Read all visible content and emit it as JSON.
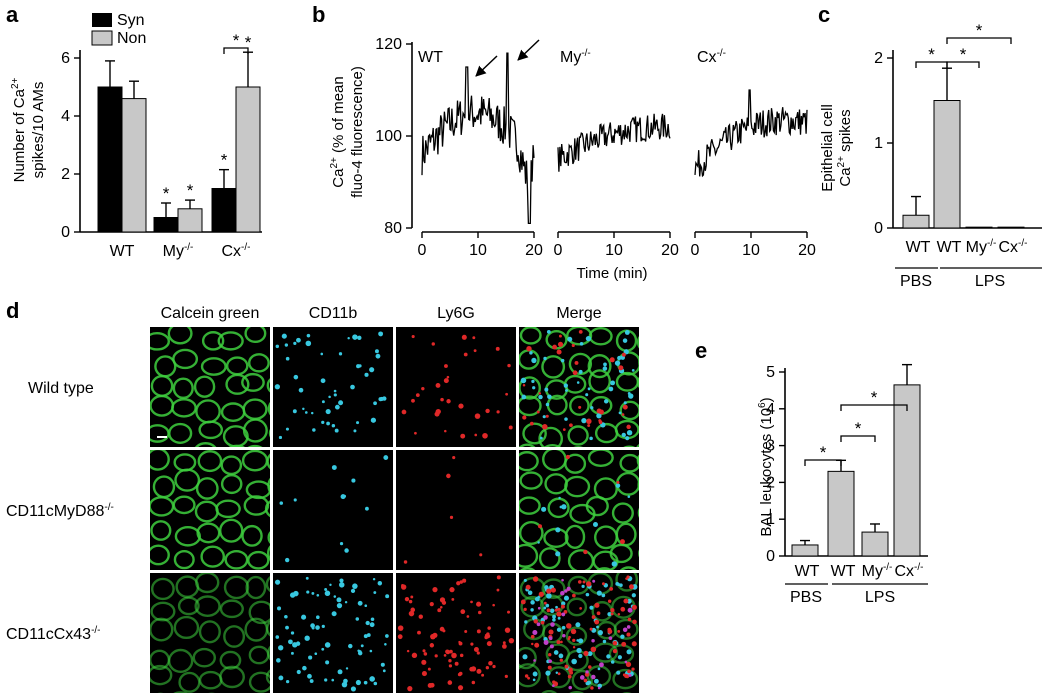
{
  "colors": {
    "syn": "#000000",
    "non": "#c8c8c8",
    "calcein": "#3ecf3e",
    "cd11b": "#38c8e0",
    "ly6g": "#e02828",
    "merge_extra": "#c040c8"
  },
  "panel_labels": {
    "a": "a",
    "b": "b",
    "c": "c",
    "d": "d",
    "e": "e"
  },
  "chart_data": [
    {
      "panel": "a",
      "type": "bar",
      "categories": [
        "WT",
        "My",
        "Cx"
      ],
      "category_superscripts": [
        "",
        "-/-",
        "-/-"
      ],
      "series": [
        {
          "name": "Syn",
          "values": [
            5.0,
            0.5,
            1.5
          ],
          "errors": [
            0.9,
            0.5,
            0.65
          ]
        },
        {
          "name": "Non",
          "values": [
            4.6,
            0.8,
            5.0
          ],
          "errors": [
            0.6,
            0.3,
            1.2
          ]
        }
      ],
      "ylabel_line1": "Number of  Ca",
      "ylabel_sup": "2+",
      "ylabel_line2": "spikes/10 AMs",
      "ylim": [
        0,
        6
      ],
      "yticks": [
        "0",
        "2",
        "4",
        "6"
      ],
      "legend": "top-left",
      "annotations": [
        "*",
        "*",
        "*",
        "*"
      ],
      "bracket_label": "*"
    },
    {
      "panel": "b",
      "type": "line",
      "ylabel_line1": "Ca",
      "ylabel_sup": "2+",
      "ylabel_rest": " (% of mean",
      "ylabel_line2": "fluo-4 fluorescence)",
      "xlabel": "Time (min)",
      "ylim": [
        80,
        120
      ],
      "yticks": [
        "80",
        "100",
        "120"
      ],
      "xlim": [
        0,
        20
      ],
      "xticks": [
        "0",
        "10",
        "20"
      ],
      "traces": [
        {
          "name": "WT",
          "sup": "",
          "start": 96,
          "end": 94,
          "noise": 4.5,
          "peaks": [
            [
              8.0,
              115
            ],
            [
              15.3,
              118
            ]
          ],
          "dip": [
            19.2,
            81
          ],
          "hump": 10
        },
        {
          "name": "My",
          "sup": "-/-",
          "start": 95,
          "end": 102,
          "noise": 3.0,
          "peaks": [],
          "dip": null,
          "hump": 2
        },
        {
          "name": "Cx",
          "sup": "-/-",
          "start": 93,
          "end": 103,
          "noise": 3.2,
          "peaks": [
            [
              9.8,
              110
            ]
          ],
          "dip": null,
          "hump": 4
        }
      ],
      "arrows": 2
    },
    {
      "panel": "c",
      "type": "bar",
      "categories": [
        "WT",
        "WT",
        "My",
        "Cx"
      ],
      "category_superscripts": [
        "",
        "",
        "-/-",
        "-/-"
      ],
      "values": [
        0.15,
        1.5,
        0.01,
        0.01
      ],
      "errors": [
        0.22,
        0.38,
        0,
        0
      ],
      "ylabel_line1": "Epithelial cell",
      "ylabel_line2": "Ca",
      "ylabel_sup": "2+",
      "ylabel_rest": " spikes",
      "ylim": [
        0,
        2
      ],
      "yticks": [
        "0",
        "1",
        "2"
      ],
      "groups": [
        "PBS",
        "LPS"
      ],
      "significance": [
        "*",
        "*",
        "*"
      ]
    },
    {
      "panel": "e",
      "type": "bar",
      "categories": [
        "WT",
        "WT",
        "My",
        "Cx"
      ],
      "category_superscripts": [
        "",
        "",
        "-/-",
        "-/-"
      ],
      "values": [
        0.3,
        2.3,
        0.65,
        4.65
      ],
      "errors": [
        0.12,
        0.3,
        0.22,
        0.55
      ],
      "ylabel": "BAL leukocytes (10",
      "ylabel_sup": "6",
      "ylabel_close": ")",
      "ylim": [
        0,
        5
      ],
      "yticks": [
        "0",
        "1",
        "2",
        "3",
        "4",
        "5"
      ],
      "groups": [
        "PBS",
        "LPS"
      ],
      "significance": [
        "*",
        "*",
        "*"
      ]
    }
  ],
  "microscopy": {
    "columns": [
      "Calcein green",
      "CD11b",
      "Ly6G",
      "Merge"
    ],
    "rows": [
      "Wild type",
      "CD11cMyD88",
      "CD11cCx43"
    ],
    "row_superscripts": [
      "",
      "-/-",
      "-/-"
    ],
    "density": [
      [
        0.55,
        0.35
      ],
      [
        0.12,
        0.06
      ],
      [
        0.9,
        0.95
      ]
    ]
  }
}
